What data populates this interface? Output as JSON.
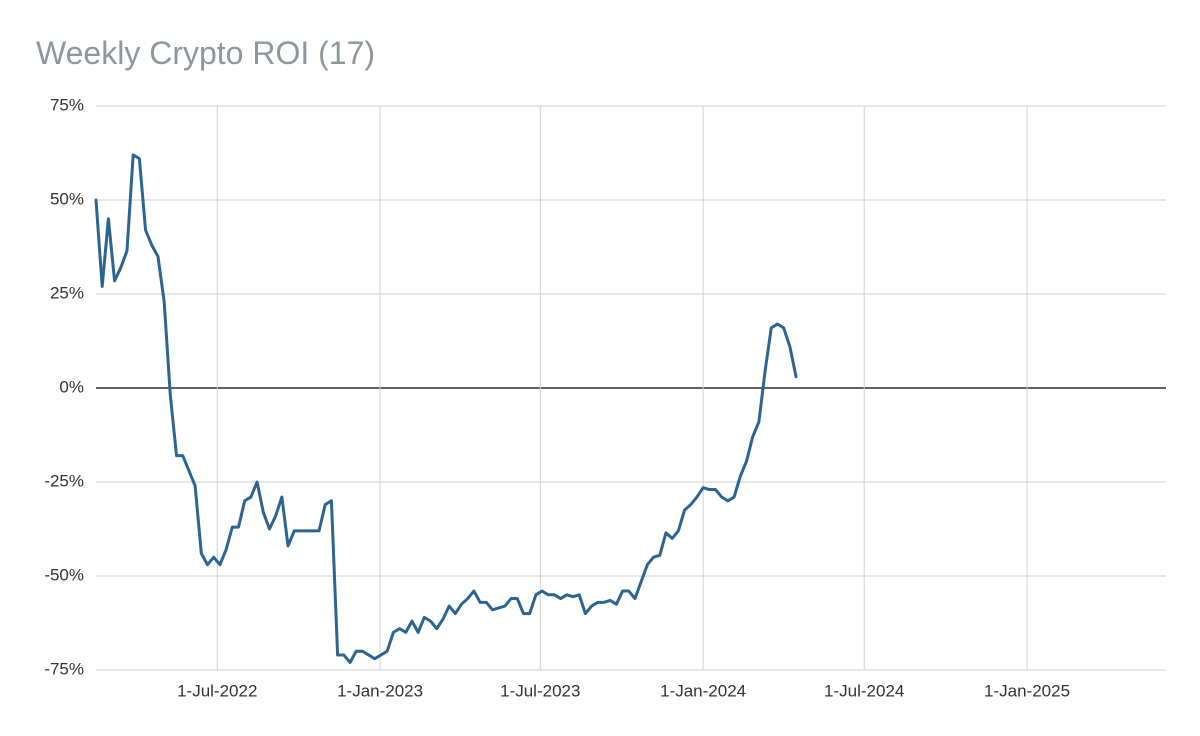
{
  "chart_data": {
    "type": "line",
    "title": "Weekly Crypto ROI (17)",
    "color": "#2c6592",
    "grid": true,
    "xlim": [
      "2022-02-14",
      "2025-06-07"
    ],
    "xticks": [
      {
        "value": "2022-07-01",
        "label": "1-Jul-2022"
      },
      {
        "value": "2023-01-01",
        "label": "1-Jan-2023"
      },
      {
        "value": "2023-07-01",
        "label": "1-Jul-2023"
      },
      {
        "value": "2024-01-01",
        "label": "1-Jan-2024"
      },
      {
        "value": "2024-07-01",
        "label": "1-Jul-2024"
      },
      {
        "value": "2025-01-01",
        "label": "1-Jan-2025"
      }
    ],
    "ylim": [
      -75,
      75
    ],
    "yticks": [
      {
        "value": -75,
        "label": "-75%"
      },
      {
        "value": -50,
        "label": "-50%"
      },
      {
        "value": -25,
        "label": "-25%"
      },
      {
        "value": 0,
        "label": "0%"
      },
      {
        "value": 25,
        "label": "25%"
      },
      {
        "value": 50,
        "label": "50%"
      },
      {
        "value": 75,
        "label": "75%"
      }
    ],
    "x": [
      "2022-02-14",
      "2022-02-21",
      "2022-02-28",
      "2022-03-07",
      "2022-03-14",
      "2022-03-21",
      "2022-03-28",
      "2022-04-04",
      "2022-04-11",
      "2022-04-18",
      "2022-04-25",
      "2022-05-02",
      "2022-05-09",
      "2022-05-16",
      "2022-05-23",
      "2022-05-30",
      "2022-06-06",
      "2022-06-13",
      "2022-06-20",
      "2022-06-27",
      "2022-07-04",
      "2022-07-11",
      "2022-07-18",
      "2022-07-25",
      "2022-08-01",
      "2022-08-08",
      "2022-08-15",
      "2022-08-22",
      "2022-08-29",
      "2022-09-05",
      "2022-09-12",
      "2022-09-19",
      "2022-09-26",
      "2022-10-03",
      "2022-10-10",
      "2022-10-17",
      "2022-10-24",
      "2022-10-31",
      "2022-11-07",
      "2022-11-14",
      "2022-11-21",
      "2022-11-28",
      "2022-12-05",
      "2022-12-12",
      "2022-12-19",
      "2022-12-26",
      "2023-01-02",
      "2023-01-09",
      "2023-01-16",
      "2023-01-23",
      "2023-01-30",
      "2023-02-06",
      "2023-02-13",
      "2023-02-20",
      "2023-02-27",
      "2023-03-06",
      "2023-03-13",
      "2023-03-20",
      "2023-03-27",
      "2023-04-03",
      "2023-04-10",
      "2023-04-17",
      "2023-04-24",
      "2023-05-01",
      "2023-05-08",
      "2023-05-15",
      "2023-05-22",
      "2023-05-29",
      "2023-06-05",
      "2023-06-12",
      "2023-06-19",
      "2023-06-26",
      "2023-07-03",
      "2023-07-10",
      "2023-07-17",
      "2023-07-24",
      "2023-07-31",
      "2023-08-07",
      "2023-08-14",
      "2023-08-21",
      "2023-08-28",
      "2023-09-04",
      "2023-09-11",
      "2023-09-18",
      "2023-09-25",
      "2023-10-02",
      "2023-10-09",
      "2023-10-16",
      "2023-10-23",
      "2023-10-30",
      "2023-11-06",
      "2023-11-13",
      "2023-11-20",
      "2023-11-27",
      "2023-12-04",
      "2023-12-11",
      "2023-12-18",
      "2023-12-25",
      "2024-01-01",
      "2024-01-08",
      "2024-01-15",
      "2024-01-22",
      "2024-01-29",
      "2024-02-05",
      "2024-02-12",
      "2024-02-19",
      "2024-02-26",
      "2024-03-04",
      "2024-03-11",
      "2024-03-18",
      "2024-03-25",
      "2024-04-01",
      "2024-04-08",
      "2024-04-15"
    ],
    "values": [
      50,
      27,
      45,
      28.5,
      32,
      36.5,
      62,
      61,
      42,
      38,
      35,
      23,
      -2,
      -18,
      -18,
      -22,
      -26,
      -44,
      -47,
      -45,
      -47,
      -43,
      -37,
      -37,
      -30,
      -29,
      -25,
      -33,
      -37.5,
      -34,
      -29,
      -42,
      -38,
      -38,
      -38,
      -38,
      -38,
      -31,
      -30,
      -71,
      -71,
      -73,
      -70,
      -70,
      -71,
      -72,
      -71,
      -70,
      -65,
      -64,
      -65,
      -62,
      -65,
      -61,
      -62,
      -64,
      -61.5,
      -58,
      -60,
      -57.5,
      -56,
      -54,
      -57,
      -57,
      -59,
      -58.5,
      -58,
      -56,
      -56,
      -60,
      -60,
      -55,
      -54,
      -55,
      -55,
      -56,
      -55,
      -55.5,
      -55,
      -60,
      -58,
      -57,
      -57,
      -56.5,
      -57.5,
      -54,
      -54,
      -56,
      -51.5,
      -47,
      -45,
      -44.5,
      -38.5,
      -40,
      -38,
      -32.5,
      -31,
      -29,
      -26.5,
      -27,
      -27,
      -29,
      -30,
      -29,
      -23.5,
      -19.5,
      -13,
      -9,
      4.5,
      16,
      17,
      16,
      11,
      3
    ]
  }
}
